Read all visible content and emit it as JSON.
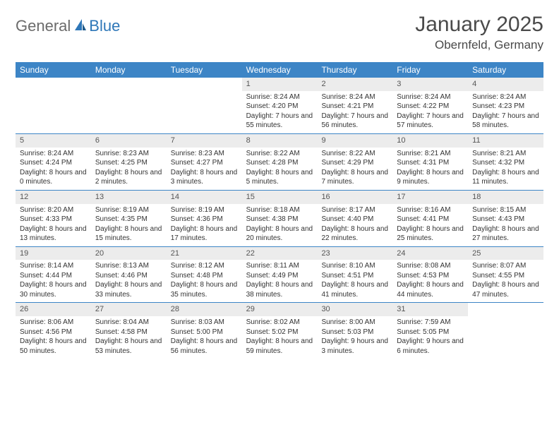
{
  "logo": {
    "text1": "General",
    "text2": "Blue"
  },
  "title": "January 2025",
  "location": "Obernfeld, Germany",
  "colors": {
    "header_bg": "#3d85c6",
    "header_text": "#ffffff",
    "daynum_bg": "#ececec",
    "daynum_text": "#555555",
    "body_text": "#333333",
    "row_border": "#3d85c6",
    "logo_gray": "#6b6b6b",
    "logo_blue": "#2e77b8"
  },
  "day_names": [
    "Sunday",
    "Monday",
    "Tuesday",
    "Wednesday",
    "Thursday",
    "Friday",
    "Saturday"
  ],
  "weeks": [
    [
      {
        "n": "",
        "l1": "",
        "l2": "",
        "l3": ""
      },
      {
        "n": "",
        "l1": "",
        "l2": "",
        "l3": ""
      },
      {
        "n": "",
        "l1": "",
        "l2": "",
        "l3": ""
      },
      {
        "n": "1",
        "l1": "Sunrise: 8:24 AM",
        "l2": "Sunset: 4:20 PM",
        "l3": "Daylight: 7 hours and 55 minutes."
      },
      {
        "n": "2",
        "l1": "Sunrise: 8:24 AM",
        "l2": "Sunset: 4:21 PM",
        "l3": "Daylight: 7 hours and 56 minutes."
      },
      {
        "n": "3",
        "l1": "Sunrise: 8:24 AM",
        "l2": "Sunset: 4:22 PM",
        "l3": "Daylight: 7 hours and 57 minutes."
      },
      {
        "n": "4",
        "l1": "Sunrise: 8:24 AM",
        "l2": "Sunset: 4:23 PM",
        "l3": "Daylight: 7 hours and 58 minutes."
      }
    ],
    [
      {
        "n": "5",
        "l1": "Sunrise: 8:24 AM",
        "l2": "Sunset: 4:24 PM",
        "l3": "Daylight: 8 hours and 0 minutes."
      },
      {
        "n": "6",
        "l1": "Sunrise: 8:23 AM",
        "l2": "Sunset: 4:25 PM",
        "l3": "Daylight: 8 hours and 2 minutes."
      },
      {
        "n": "7",
        "l1": "Sunrise: 8:23 AM",
        "l2": "Sunset: 4:27 PM",
        "l3": "Daylight: 8 hours and 3 minutes."
      },
      {
        "n": "8",
        "l1": "Sunrise: 8:22 AM",
        "l2": "Sunset: 4:28 PM",
        "l3": "Daylight: 8 hours and 5 minutes."
      },
      {
        "n": "9",
        "l1": "Sunrise: 8:22 AM",
        "l2": "Sunset: 4:29 PM",
        "l3": "Daylight: 8 hours and 7 minutes."
      },
      {
        "n": "10",
        "l1": "Sunrise: 8:21 AM",
        "l2": "Sunset: 4:31 PM",
        "l3": "Daylight: 8 hours and 9 minutes."
      },
      {
        "n": "11",
        "l1": "Sunrise: 8:21 AM",
        "l2": "Sunset: 4:32 PM",
        "l3": "Daylight: 8 hours and 11 minutes."
      }
    ],
    [
      {
        "n": "12",
        "l1": "Sunrise: 8:20 AM",
        "l2": "Sunset: 4:33 PM",
        "l3": "Daylight: 8 hours and 13 minutes."
      },
      {
        "n": "13",
        "l1": "Sunrise: 8:19 AM",
        "l2": "Sunset: 4:35 PM",
        "l3": "Daylight: 8 hours and 15 minutes."
      },
      {
        "n": "14",
        "l1": "Sunrise: 8:19 AM",
        "l2": "Sunset: 4:36 PM",
        "l3": "Daylight: 8 hours and 17 minutes."
      },
      {
        "n": "15",
        "l1": "Sunrise: 8:18 AM",
        "l2": "Sunset: 4:38 PM",
        "l3": "Daylight: 8 hours and 20 minutes."
      },
      {
        "n": "16",
        "l1": "Sunrise: 8:17 AM",
        "l2": "Sunset: 4:40 PM",
        "l3": "Daylight: 8 hours and 22 minutes."
      },
      {
        "n": "17",
        "l1": "Sunrise: 8:16 AM",
        "l2": "Sunset: 4:41 PM",
        "l3": "Daylight: 8 hours and 25 minutes."
      },
      {
        "n": "18",
        "l1": "Sunrise: 8:15 AM",
        "l2": "Sunset: 4:43 PM",
        "l3": "Daylight: 8 hours and 27 minutes."
      }
    ],
    [
      {
        "n": "19",
        "l1": "Sunrise: 8:14 AM",
        "l2": "Sunset: 4:44 PM",
        "l3": "Daylight: 8 hours and 30 minutes."
      },
      {
        "n": "20",
        "l1": "Sunrise: 8:13 AM",
        "l2": "Sunset: 4:46 PM",
        "l3": "Daylight: 8 hours and 33 minutes."
      },
      {
        "n": "21",
        "l1": "Sunrise: 8:12 AM",
        "l2": "Sunset: 4:48 PM",
        "l3": "Daylight: 8 hours and 35 minutes."
      },
      {
        "n": "22",
        "l1": "Sunrise: 8:11 AM",
        "l2": "Sunset: 4:49 PM",
        "l3": "Daylight: 8 hours and 38 minutes."
      },
      {
        "n": "23",
        "l1": "Sunrise: 8:10 AM",
        "l2": "Sunset: 4:51 PM",
        "l3": "Daylight: 8 hours and 41 minutes."
      },
      {
        "n": "24",
        "l1": "Sunrise: 8:08 AM",
        "l2": "Sunset: 4:53 PM",
        "l3": "Daylight: 8 hours and 44 minutes."
      },
      {
        "n": "25",
        "l1": "Sunrise: 8:07 AM",
        "l2": "Sunset: 4:55 PM",
        "l3": "Daylight: 8 hours and 47 minutes."
      }
    ],
    [
      {
        "n": "26",
        "l1": "Sunrise: 8:06 AM",
        "l2": "Sunset: 4:56 PM",
        "l3": "Daylight: 8 hours and 50 minutes."
      },
      {
        "n": "27",
        "l1": "Sunrise: 8:04 AM",
        "l2": "Sunset: 4:58 PM",
        "l3": "Daylight: 8 hours and 53 minutes."
      },
      {
        "n": "28",
        "l1": "Sunrise: 8:03 AM",
        "l2": "Sunset: 5:00 PM",
        "l3": "Daylight: 8 hours and 56 minutes."
      },
      {
        "n": "29",
        "l1": "Sunrise: 8:02 AM",
        "l2": "Sunset: 5:02 PM",
        "l3": "Daylight: 8 hours and 59 minutes."
      },
      {
        "n": "30",
        "l1": "Sunrise: 8:00 AM",
        "l2": "Sunset: 5:03 PM",
        "l3": "Daylight: 9 hours and 3 minutes."
      },
      {
        "n": "31",
        "l1": "Sunrise: 7:59 AM",
        "l2": "Sunset: 5:05 PM",
        "l3": "Daylight: 9 hours and 6 minutes."
      },
      {
        "n": "",
        "l1": "",
        "l2": "",
        "l3": ""
      }
    ]
  ]
}
